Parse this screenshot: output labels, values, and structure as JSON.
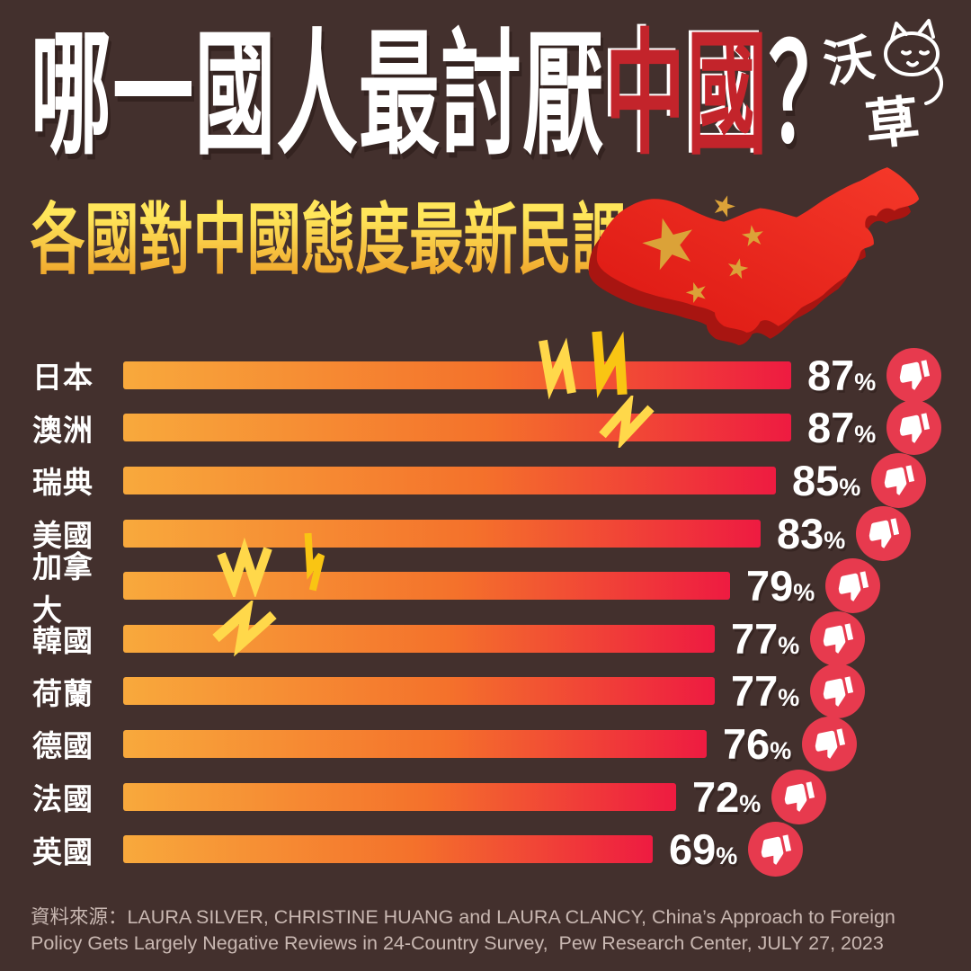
{
  "page": {
    "background_color": "#43302D"
  },
  "header": {
    "title_prefix": "哪一國人最討厭",
    "title_highlight": "中國",
    "title_suffix": "？",
    "highlight_color": "#C3242B",
    "subtitle": "各國對中國態度最新民調",
    "subtitle_gradient": [
      "#FFE65A",
      "#EFA62B"
    ],
    "logo_text": "沃草",
    "logo_icon": "cat-doodle-icon"
  },
  "chart_data": {
    "type": "bar",
    "orientation": "horizontal",
    "title": "哪一國人最討厭中國？",
    "subtitle": "各國對中國態度最新民調",
    "unit": "%",
    "categories": [
      "日本",
      "澳洲",
      "瑞典",
      "美國",
      "加拿大",
      "韓國",
      "荷蘭",
      "德國",
      "法國",
      "英國"
    ],
    "values": [
      87,
      87,
      85,
      83,
      79,
      77,
      77,
      76,
      72,
      69
    ],
    "max_value_for_scale": 87,
    "value_labels": [
      "87%",
      "87%",
      "85%",
      "83%",
      "79%",
      "77%",
      "77%",
      "76%",
      "72%",
      "69%"
    ],
    "bar_gradient": [
      "#F8A93C",
      "#F4712B",
      "#EE1B41"
    ],
    "row_icon": "thumbs-down-icon",
    "icon_bg": "#E73A4E",
    "icon_glyph_color": "#FFFFFF",
    "grid": false,
    "legend": false
  },
  "decor": {
    "map_illustration": "china-map-3d-red-with-gold-stars",
    "map_colors": {
      "top": "#EE2A1D",
      "side": "#A81511",
      "stars": "#DBA238"
    },
    "lightning_color": "#FFD84A"
  },
  "footer": {
    "source_text": "資料來源：LAURA SILVER, CHRISTINE HUANG and LAURA CLANCY, China’s Approach to Foreign Policy Gets Largely Negative Reviews in 24-Country Survey,  Pew Research Center, JULY 27, 2023"
  }
}
